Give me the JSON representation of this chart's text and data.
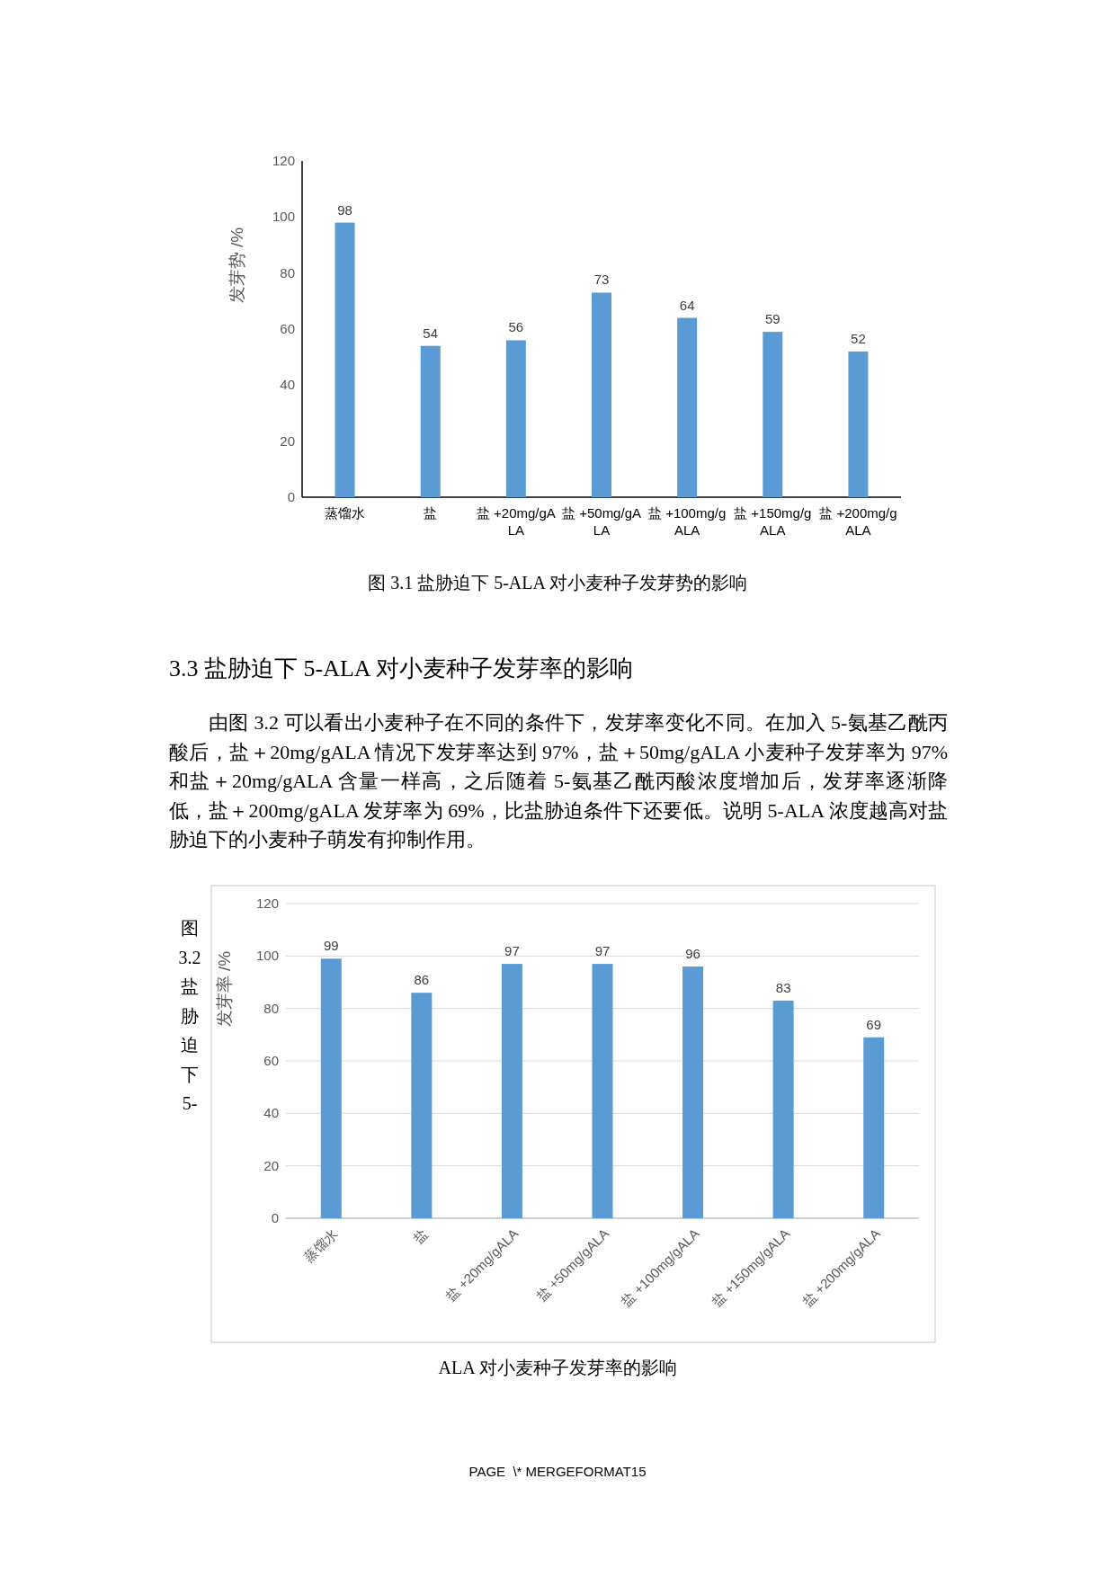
{
  "chart_data": [
    {
      "type": "bar",
      "title": "图 3.1 盐胁迫下 5-ALA 对小麦种子发芽势的影响",
      "ylabel": "发芽势 /%",
      "categories": [
        "蒸馏水",
        "盐",
        "盐 +20mg/gALA",
        "盐 +50mg/gALA",
        "盐 +100mg/gALA",
        "盐 +150mg/gALA",
        "盐 +200mg/gALA"
      ],
      "values": [
        98,
        54,
        56,
        73,
        64,
        59,
        52
      ],
      "color": "#5b9bd5",
      "ylim": [
        0,
        120
      ],
      "yticks": [
        0,
        20,
        40,
        60,
        80,
        100,
        120
      ],
      "data_labels": true,
      "grid": false,
      "annotations": [
        "3.3 盐胁迫下 5-ALA 对小麦种子发芽率的影响",
        "由图 3.2 可以看出小麦种子在不同的条件下，发芽率变化不同。在加入 5-氨基乙酰丙酸后，盐＋20mg/gALA 情况下发芽率达到 97%，盐＋50mg/gALA 小麦种子发芽率为 97%和盐＋20mg/gALA 含量一样高，之后随着 5-氨基乙酰丙酸浓度增加后，发芽率逐渐降低，盐＋200mg/gALA 发芽率为 69%，比盐胁迫条件下还要低。说明 5-ALA 浓度越高对盐胁迫下的小麦种子萌发有抑制作用。"
      ]
    },
    {
      "type": "bar",
      "title": "ALA 对小麦种子发芽率的影响",
      "ylabel": "发芽率 /%",
      "categories": [
        "蒸馏水",
        "盐",
        "盐 +20mg/gALA",
        "盐 +50mg/gALA",
        "盐 +100mg/gALA",
        "盐 +150mg/gALA",
        "盐 +200mg/gALA"
      ],
      "values": [
        99,
        86,
        97,
        97,
        96,
        83,
        69
      ],
      "color": "#5b9bd5",
      "ylim": [
        0,
        120
      ],
      "yticks": [
        0,
        20,
        40,
        60,
        80,
        100,
        120
      ],
      "data_labels": true,
      "grid": "y",
      "annotations": [
        "图 3.2 盐胁迫下 5-",
        "PAGE  \\* MERGEFORMAT15"
      ]
    }
  ]
}
